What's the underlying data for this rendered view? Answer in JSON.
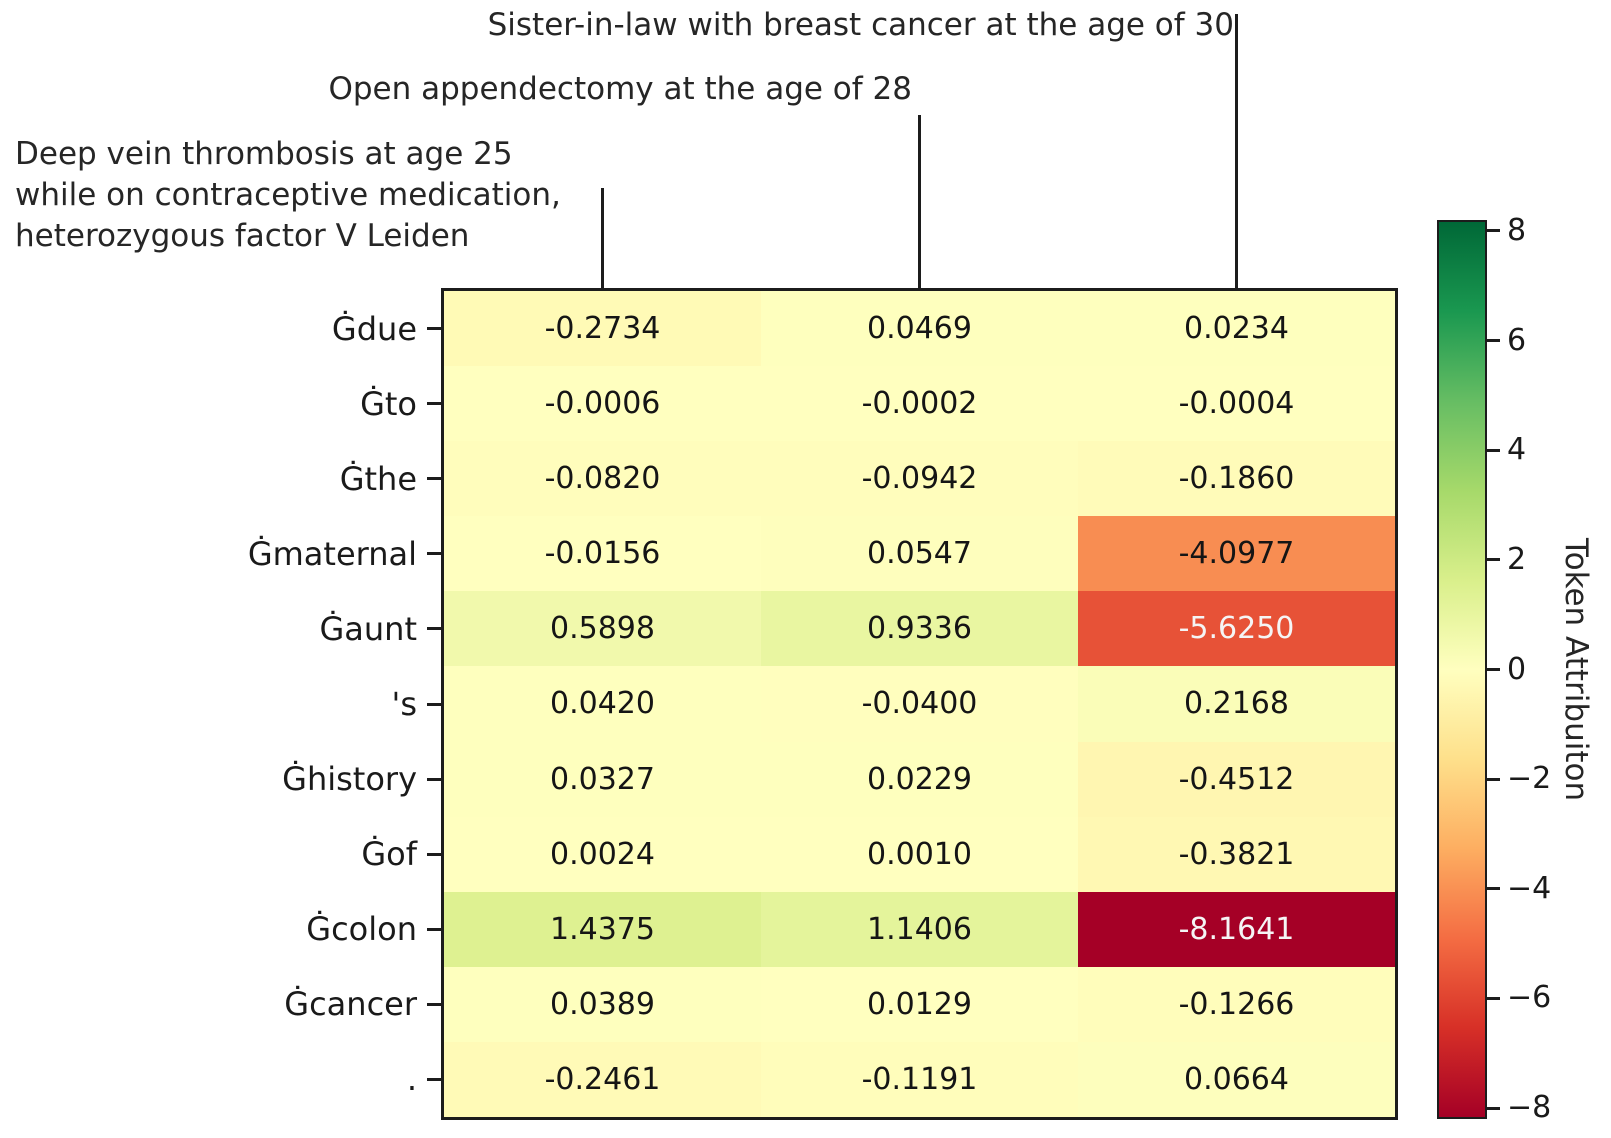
{
  "chart_data": {
    "type": "heatmap",
    "columns": [
      "Deep vein thrombosis at age 25\nwhile on contraceptive medication,\nheterozygous factor V Leiden",
      "Open appendectomy at the age of 28",
      "Sister-in-law with breast cancer at the age of 30"
    ],
    "rows": [
      "Ġdue",
      "Ġto",
      "Ġthe",
      "Ġmaternal",
      "Ġaunt",
      "'s",
      "Ġhistory",
      "Ġof",
      "Ġcolon",
      "Ġcancer",
      "."
    ],
    "values": [
      [
        -0.2734,
        0.0469,
        0.0234
      ],
      [
        -0.0006,
        -0.0002,
        -0.0004
      ],
      [
        -0.082,
        -0.0942,
        -0.186
      ],
      [
        -0.0156,
        0.0547,
        -4.0977
      ],
      [
        0.5898,
        0.9336,
        -5.625
      ],
      [
        0.042,
        -0.04,
        0.2168
      ],
      [
        0.0327,
        0.0229,
        -0.4512
      ],
      [
        0.0024,
        0.001,
        -0.3821
      ],
      [
        1.4375,
        1.1406,
        -8.1641
      ],
      [
        0.0389,
        0.0129,
        -0.1266
      ],
      [
        -0.2461,
        -0.1191,
        0.0664
      ]
    ],
    "value_format_decimals": 4,
    "grid": false,
    "legend_position": "right-colorbar",
    "colorbar": {
      "label": "Token Attribuiton",
      "ticks": [
        8,
        6,
        4,
        2,
        0,
        -2,
        -4,
        -6,
        -8
      ],
      "tick_labels": [
        "8",
        "6",
        "4",
        "2",
        "0",
        "−2",
        "−4",
        "−6",
        "−8"
      ],
      "vmin": -8.1641,
      "vmax": 8.1641,
      "colormap": "RdYlGn",
      "colormap_stops": [
        "#a50026",
        "#d73027",
        "#f46d43",
        "#fdae61",
        "#fee08b",
        "#ffffbf",
        "#d9ef8b",
        "#a6d96a",
        "#66bd63",
        "#1a9850",
        "#006837"
      ]
    },
    "colors": {
      "annotation_dark": "#151515",
      "annotation_light": "#f5f5f5",
      "axis_text": "#262626",
      "tick_line": "#1c1c1c",
      "border": "#1c1c1c",
      "background": "#ffffff"
    }
  }
}
